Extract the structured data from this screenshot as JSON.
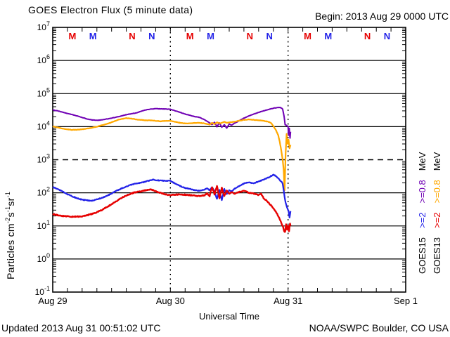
{
  "footer": {
    "updated": "Updated 2013 Aug 31 00:51:02 UTC",
    "credit": "NOAA/SWPC Boulder, CO USA"
  },
  "legend": {
    "columns": [
      {
        "name": "GOES15",
        "items": [
          {
            "text": "GOES15",
            "color": "#000000"
          },
          {
            "text": ">=2",
            "color": "#2222e8"
          },
          {
            "text": ">=0.8",
            "color": "#6f00b4"
          },
          {
            "text": "MeV",
            "color": "#000000"
          }
        ]
      },
      {
        "name": "GOES13",
        "items": [
          {
            "text": "GOES13",
            "color": "#000000"
          },
          {
            "text": ">=2",
            "color": "#e60000"
          },
          {
            "text": ">=0.8",
            "color": "#ffa800"
          },
          {
            "text": "MeV",
            "color": "#000000"
          }
        ]
      }
    ]
  },
  "chart_data": {
    "type": "line",
    "title": "GOES Electron Flux (5 minute data)",
    "begin_label": "Begin: 2013 Aug 29 0000 UTC",
    "xlabel": "Universal Time",
    "ylabel": "Particles cm-2 s-1 sr-1",
    "ylabel_parts": [
      {
        "text": "Particles cm"
      },
      {
        "sup": "-2"
      },
      {
        "text": "s"
      },
      {
        "sup": "-1"
      },
      {
        "text": "sr"
      },
      {
        "sup": "-1"
      }
    ],
    "x_unit_hours_from": "2013 Aug 29 0000 UTC",
    "x_range_hours": [
      0,
      72
    ],
    "x_minor_tick_hours": 3,
    "x_ticks": [
      {
        "hours": 0,
        "label": "Aug 29"
      },
      {
        "hours": 24,
        "label": "Aug 30"
      },
      {
        "hours": 48,
        "label": "Aug 31"
      },
      {
        "hours": 72,
        "label": "Sep 1"
      }
    ],
    "day_divider_hours": [
      24,
      48
    ],
    "y_scale": "log",
    "y_range_exponents": [
      -1,
      7
    ],
    "y_ticks_exponents": [
      7,
      6,
      5,
      4,
      3,
      2,
      1,
      0,
      -1
    ],
    "solid_gridline_exponents": [
      6,
      5,
      4,
      2,
      1,
      0
    ],
    "threshold": {
      "exponent": 3,
      "style": "dashed"
    },
    "local_time_markers": {
      "labels": [
        "M",
        "M",
        "N",
        "N"
      ],
      "hour_offsets": [
        4.0,
        8.2,
        16.2,
        20.2
      ],
      "colors": [
        "#e60000",
        "#2222e8",
        "#e60000",
        "#2222e8"
      ],
      "day_starts_hours": [
        0,
        24,
        48
      ]
    },
    "series": [
      {
        "name": "GOES15 >=0.8 MeV",
        "satellite": "GOES15",
        "energy": ">=0.8 MeV",
        "color": "#6f00b4",
        "width": 2.0,
        "points": [
          [
            0,
            32000
          ],
          [
            1,
            30000
          ],
          [
            2,
            27500
          ],
          [
            3,
            25000
          ],
          [
            4,
            23000
          ],
          [
            5,
            21000
          ],
          [
            6,
            19000
          ],
          [
            7,
            17000
          ],
          [
            8,
            16000
          ],
          [
            9,
            15500
          ],
          [
            10,
            16000
          ],
          [
            11,
            17000
          ],
          [
            12,
            18000
          ],
          [
            13,
            19500
          ],
          [
            14,
            21000
          ],
          [
            15,
            23000
          ],
          [
            16,
            24500
          ],
          [
            17,
            26000
          ],
          [
            18,
            29000
          ],
          [
            19,
            32000
          ],
          [
            20,
            34000
          ],
          [
            21,
            35000
          ],
          [
            22,
            34500
          ],
          [
            23,
            34000
          ],
          [
            24,
            33500
          ],
          [
            25,
            30000
          ],
          [
            26,
            27000
          ],
          [
            27,
            24000
          ],
          [
            28,
            22000
          ],
          [
            29,
            20000
          ],
          [
            30,
            19000
          ],
          [
            31,
            16000
          ],
          [
            31.5,
            14500
          ],
          [
            32,
            13000
          ],
          [
            32.5,
            11500
          ],
          [
            33,
            13500
          ],
          [
            33.5,
            10000
          ],
          [
            34,
            13000
          ],
          [
            34.5,
            9500
          ],
          [
            35,
            11500
          ],
          [
            35.5,
            9000
          ],
          [
            36,
            12000
          ],
          [
            36.5,
            11000
          ],
          [
            37,
            12500
          ],
          [
            38,
            15000
          ],
          [
            39,
            18000
          ],
          [
            40,
            21000
          ],
          [
            41,
            24000
          ],
          [
            42,
            27000
          ],
          [
            43,
            30000
          ],
          [
            44,
            33000
          ],
          [
            45,
            36000
          ],
          [
            46,
            38000
          ],
          [
            46.5,
            37500
          ],
          [
            46.9,
            34000
          ],
          [
            47.2,
            20000
          ],
          [
            47.4,
            11500
          ],
          [
            47.8,
            10500
          ],
          [
            48,
            10000
          ],
          [
            48.1,
            5500
          ],
          [
            48.25,
            9000
          ],
          [
            48.4,
            4500
          ],
          [
            48.5,
            7000
          ]
        ]
      },
      {
        "name": "GOES13 >=0.8 MeV",
        "satellite": "GOES13",
        "energy": ">=0.8 MeV",
        "color": "#ffa800",
        "width": 2.2,
        "points": [
          [
            0,
            10200
          ],
          [
            1,
            9400
          ],
          [
            2,
            8800
          ],
          [
            3,
            8300
          ],
          [
            4,
            8000
          ],
          [
            5,
            8100
          ],
          [
            6,
            8300
          ],
          [
            7,
            8700
          ],
          [
            8,
            9200
          ],
          [
            9,
            10000
          ],
          [
            10,
            11000
          ],
          [
            11,
            12000
          ],
          [
            12,
            13500
          ],
          [
            13,
            15500
          ],
          [
            14,
            17000
          ],
          [
            15,
            18000
          ],
          [
            16,
            17500
          ],
          [
            17,
            16500
          ],
          [
            18,
            16000
          ],
          [
            19,
            15500
          ],
          [
            20,
            15500
          ],
          [
            21,
            15000
          ],
          [
            22,
            14500
          ],
          [
            23,
            15000
          ],
          [
            24,
            15000
          ],
          [
            25,
            14000
          ],
          [
            26,
            13000
          ],
          [
            27,
            12500
          ],
          [
            28,
            12500
          ],
          [
            29,
            13000
          ],
          [
            30,
            13000
          ],
          [
            31,
            12500
          ],
          [
            32,
            11500
          ],
          [
            32.5,
            13000
          ],
          [
            33,
            12000
          ],
          [
            33.5,
            13500
          ],
          [
            34,
            12500
          ],
          [
            34.5,
            13000
          ],
          [
            35,
            14000
          ],
          [
            35.5,
            13000
          ],
          [
            36,
            13500
          ],
          [
            37,
            14000
          ],
          [
            38,
            15000
          ],
          [
            39,
            16000
          ],
          [
            40,
            16500
          ],
          [
            41,
            16000
          ],
          [
            42,
            15500
          ],
          [
            43,
            15000
          ],
          [
            44,
            14000
          ],
          [
            44.5,
            13000
          ],
          [
            45,
            10500
          ],
          [
            45.5,
            8000
          ],
          [
            46,
            5500
          ],
          [
            46.3,
            3500
          ],
          [
            46.6,
            2000
          ],
          [
            46.9,
            1000
          ],
          [
            47.1,
            500
          ],
          [
            47.3,
            120
          ],
          [
            47.5,
            1500
          ],
          [
            47.7,
            6000
          ],
          [
            47.9,
            3000
          ],
          [
            48.1,
            4000
          ],
          [
            48.3,
            2200
          ],
          [
            48.5,
            2800
          ]
        ]
      },
      {
        "name": "GOES15 >=2 MeV",
        "satellite": "GOES15",
        "energy": ">=2 MeV",
        "color": "#2222e8",
        "width": 2.2,
        "points": [
          [
            0,
            150
          ],
          [
            1,
            130
          ],
          [
            2,
            110
          ],
          [
            3,
            90
          ],
          [
            4,
            78
          ],
          [
            5,
            68
          ],
          [
            6,
            62
          ],
          [
            7,
            59
          ],
          [
            8,
            58
          ],
          [
            9,
            63
          ],
          [
            10,
            70
          ],
          [
            11,
            80
          ],
          [
            12,
            95
          ],
          [
            13,
            115
          ],
          [
            14,
            135
          ],
          [
            15,
            155
          ],
          [
            16,
            175
          ],
          [
            17,
            190
          ],
          [
            18,
            200
          ],
          [
            19,
            220
          ],
          [
            20,
            240
          ],
          [
            20.5,
            250
          ],
          [
            21,
            240
          ],
          [
            22,
            235
          ],
          [
            23,
            230
          ],
          [
            24,
            230
          ],
          [
            25,
            190
          ],
          [
            26,
            160
          ],
          [
            27,
            140
          ],
          [
            28,
            130
          ],
          [
            29,
            120
          ],
          [
            30,
            115
          ],
          [
            31,
            125
          ],
          [
            31.5,
            140
          ],
          [
            32,
            120
          ],
          [
            32.5,
            145
          ],
          [
            33,
            110
          ],
          [
            33.5,
            65
          ],
          [
            34,
            120
          ],
          [
            34.5,
            60
          ],
          [
            35,
            130
          ],
          [
            35.5,
            90
          ],
          [
            36,
            120
          ],
          [
            36.5,
            110
          ],
          [
            37,
            130
          ],
          [
            38,
            160
          ],
          [
            39,
            190
          ],
          [
            40,
            210
          ],
          [
            40.5,
            200
          ],
          [
            41,
            195
          ],
          [
            42,
            220
          ],
          [
            43,
            250
          ],
          [
            44,
            290
          ],
          [
            44.5,
            320
          ],
          [
            45,
            350
          ],
          [
            45.3,
            340
          ],
          [
            45.7,
            300
          ],
          [
            46,
            280
          ],
          [
            46.3,
            240
          ],
          [
            46.6,
            220
          ],
          [
            46.9,
            190
          ],
          [
            47.1,
            120
          ],
          [
            47.3,
            75
          ],
          [
            47.5,
            50
          ],
          [
            47.7,
            40
          ],
          [
            47.9,
            33
          ],
          [
            48.1,
            28
          ],
          [
            48.3,
            18
          ],
          [
            48.5,
            28
          ]
        ]
      },
      {
        "name": "GOES13 >=2 MeV",
        "satellite": "GOES13",
        "energy": ">=2 MeV",
        "color": "#e60000",
        "width": 2.4,
        "points": [
          [
            0,
            23
          ],
          [
            1,
            21
          ],
          [
            2,
            20
          ],
          [
            3,
            19.5
          ],
          [
            4,
            19
          ],
          [
            5,
            19
          ],
          [
            6,
            19.5
          ],
          [
            7,
            21
          ],
          [
            8,
            23
          ],
          [
            9,
            26
          ],
          [
            10,
            30
          ],
          [
            11,
            37
          ],
          [
            12,
            45
          ],
          [
            13,
            56
          ],
          [
            14,
            70
          ],
          [
            15,
            82
          ],
          [
            16,
            95
          ],
          [
            17,
            105
          ],
          [
            18,
            110
          ],
          [
            19,
            120
          ],
          [
            20,
            125
          ],
          [
            20.5,
            120
          ],
          [
            21,
            110
          ],
          [
            22,
            100
          ],
          [
            23,
            90
          ],
          [
            24,
            85
          ],
          [
            25,
            88
          ],
          [
            26,
            90
          ],
          [
            27,
            87
          ],
          [
            28,
            85
          ],
          [
            29,
            82
          ],
          [
            30,
            80
          ],
          [
            31,
            85
          ],
          [
            31.5,
            95
          ],
          [
            32,
            80
          ],
          [
            32.5,
            150
          ],
          [
            33,
            90
          ],
          [
            33.5,
            160
          ],
          [
            34,
            70
          ],
          [
            34.5,
            140
          ],
          [
            35,
            80
          ],
          [
            35.5,
            120
          ],
          [
            36,
            95
          ],
          [
            36.5,
            105
          ],
          [
            37,
            95
          ],
          [
            38,
            105
          ],
          [
            39,
            115
          ],
          [
            39.5,
            110
          ],
          [
            40,
            100
          ],
          [
            41,
            95
          ],
          [
            42,
            85
          ],
          [
            42.5,
            95
          ],
          [
            43,
            70
          ],
          [
            43.5,
            60
          ],
          [
            44,
            50
          ],
          [
            44.5,
            42
          ],
          [
            45,
            35
          ],
          [
            45.5,
            27
          ],
          [
            46,
            20
          ],
          [
            46.5,
            14
          ],
          [
            47,
            9
          ],
          [
            47.2,
            7
          ],
          [
            47.4,
            6.5
          ],
          [
            47.6,
            11
          ],
          [
            47.8,
            7.5
          ],
          [
            48,
            10
          ],
          [
            48.2,
            7
          ],
          [
            48.4,
            12
          ],
          [
            48.5,
            10
          ]
        ]
      }
    ]
  }
}
